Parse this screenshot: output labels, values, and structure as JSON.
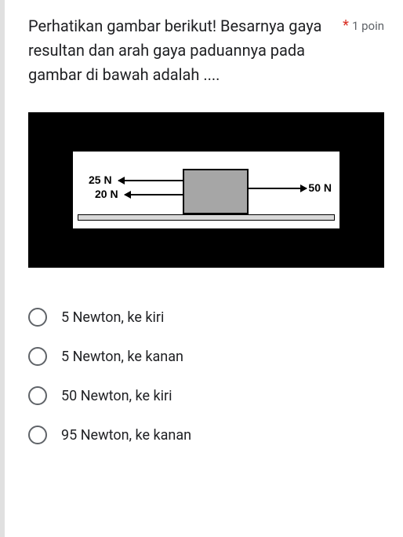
{
  "question": {
    "text": "Perhatikan gambar berikut! Besarnya gaya resultan dan arah gaya paduannya pada gambar di bawah adalah ....",
    "required_marker": "*",
    "points_label": "1 poin"
  },
  "diagram": {
    "type": "infographic",
    "background_color": "#000000",
    "panel_color": "#ffffff",
    "block_color": "#a6a6a6",
    "surface_color": "#d9d9d9",
    "border_color": "#000000",
    "forces": [
      {
        "label": "25 N",
        "magnitude": 25,
        "direction": "left"
      },
      {
        "label": "20 N",
        "magnitude": 20,
        "direction": "left"
      },
      {
        "label": "50 N",
        "magnitude": 50,
        "direction": "right"
      }
    ],
    "label_fontsize": 14,
    "label_color": "#000000"
  },
  "options": [
    {
      "label": "5 Newton, ke kiri",
      "selected": false
    },
    {
      "label": "5 Newton, ke kanan",
      "selected": false
    },
    {
      "label": "50 Newton, ke kiri",
      "selected": false
    },
    {
      "label": "95 Newton, ke kanan",
      "selected": false
    }
  ],
  "colors": {
    "required": "#d93025",
    "text": "#202124",
    "meta": "#5f6368",
    "radio_border": "#5f6368",
    "left_accent": "#e0e0e0"
  }
}
